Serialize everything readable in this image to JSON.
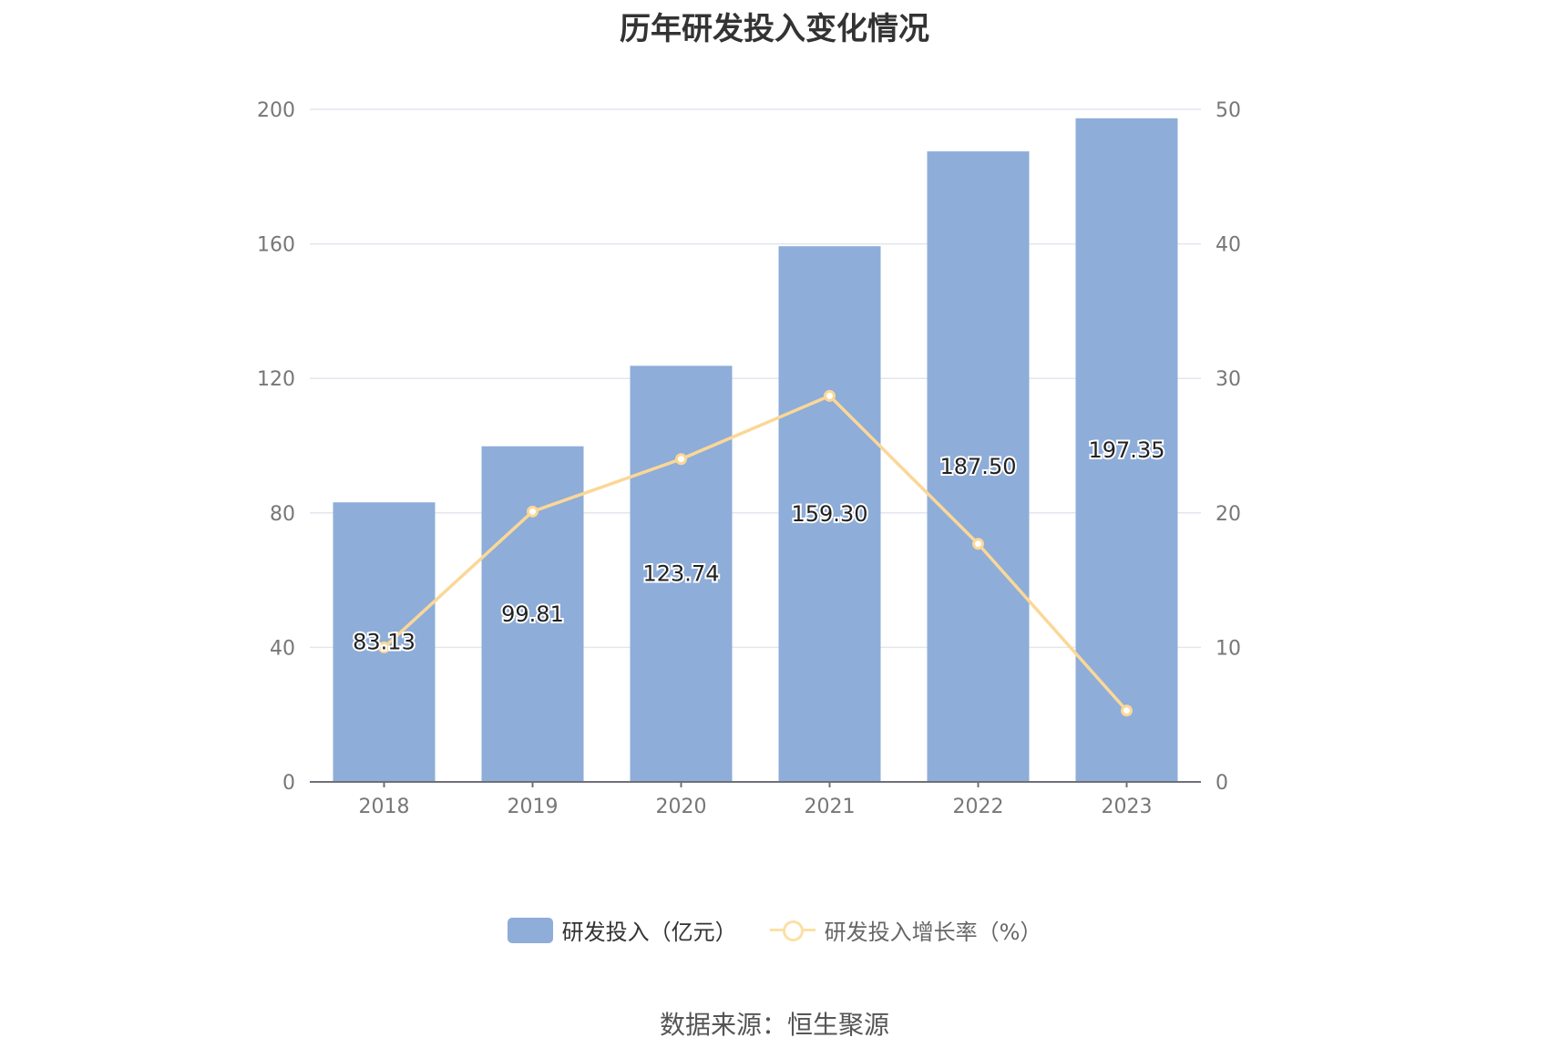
{
  "chart_data": {
    "type": "bar",
    "title": "历年研发投入变化情况",
    "categories": [
      "2018",
      "2019",
      "2020",
      "2021",
      "2022",
      "2023"
    ],
    "series": [
      {
        "name": "研发投入（亿元）",
        "type": "bar",
        "axis": "left",
        "color": "#8eadd9",
        "values": [
          83.13,
          99.81,
          123.74,
          159.3,
          187.5,
          197.35
        ],
        "labels": [
          "83.13",
          "99.81",
          "123.74",
          "159.30",
          "187.50",
          "197.35"
        ]
      },
      {
        "name": "研发投入增长率（%）",
        "type": "line",
        "axis": "right",
        "color": "#fbd797",
        "values": [
          10.0,
          20.1,
          24.0,
          28.7,
          17.7,
          5.3
        ]
      }
    ],
    "y_left": {
      "min": 0,
      "max": 200,
      "ticks": [
        "0",
        "40",
        "80",
        "120",
        "160",
        "200"
      ]
    },
    "y_right": {
      "min": 0,
      "max": 50,
      "ticks": [
        "0",
        "10",
        "20",
        "30",
        "40",
        "50"
      ]
    },
    "grid": true,
    "legend_position": "bottom"
  },
  "source_text": "数据来源：恒生聚源"
}
